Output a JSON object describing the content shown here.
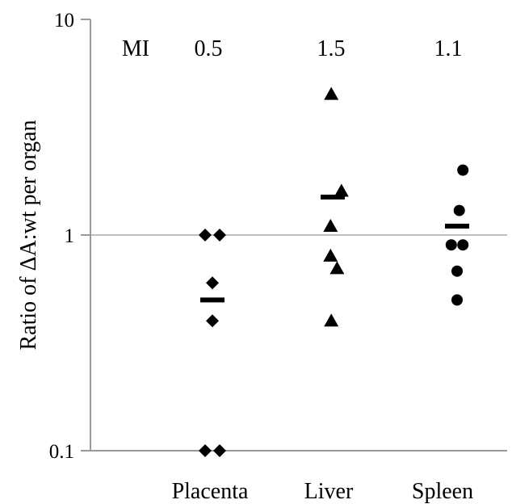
{
  "chart_data": {
    "type": "scatter",
    "title": "",
    "ylabel": "Ratio of ΔA:wt per organ",
    "xlabel": "",
    "yscale": "log",
    "ylim": [
      0.1,
      10
    ],
    "yticks": [
      {
        "value": 10,
        "label": "10"
      },
      {
        "value": 1,
        "label": "1"
      },
      {
        "value": 0.1,
        "label": "0.1"
      }
    ],
    "reference_line": 1,
    "categories": [
      "Placenta",
      "Liver",
      "Spleen"
    ],
    "mi": {
      "label": "MI",
      "values": [
        "0.5",
        "1.5",
        "1.1"
      ]
    },
    "groups": [
      {
        "category": "Placenta",
        "marker": "diamond",
        "points": [
          {
            "offset": -1,
            "y": 1.0
          },
          {
            "offset": 1,
            "y": 1.0
          },
          {
            "offset": 0,
            "y": 0.6
          },
          {
            "offset": 0,
            "y": 0.4
          },
          {
            "offset": -1,
            "y": 0.1
          },
          {
            "offset": 1,
            "y": 0.1
          }
        ],
        "mean": 0.5
      },
      {
        "category": "Liver",
        "marker": "triangle",
        "points": [
          {
            "offset": -0.2,
            "y": 4.5
          },
          {
            "offset": 1.2,
            "y": 1.6
          },
          {
            "offset": -0.3,
            "y": 1.1
          },
          {
            "offset": -0.3,
            "y": 0.8
          },
          {
            "offset": 0.6,
            "y": 0.7
          },
          {
            "offset": -0.2,
            "y": 0.4
          }
        ],
        "mean": 1.5
      },
      {
        "category": "Spleen",
        "marker": "circle",
        "points": [
          {
            "offset": 0.8,
            "y": 2.0
          },
          {
            "offset": 0.3,
            "y": 1.3
          },
          {
            "offset": -0.8,
            "y": 0.9
          },
          {
            "offset": 0.8,
            "y": 0.9
          },
          {
            "offset": 0.0,
            "y": 0.68
          },
          {
            "offset": 0.0,
            "y": 0.5
          }
        ],
        "mean": 1.1
      }
    ],
    "colors": {
      "marks": "#000000",
      "axis": "#999999",
      "gridline": "#999999"
    }
  }
}
